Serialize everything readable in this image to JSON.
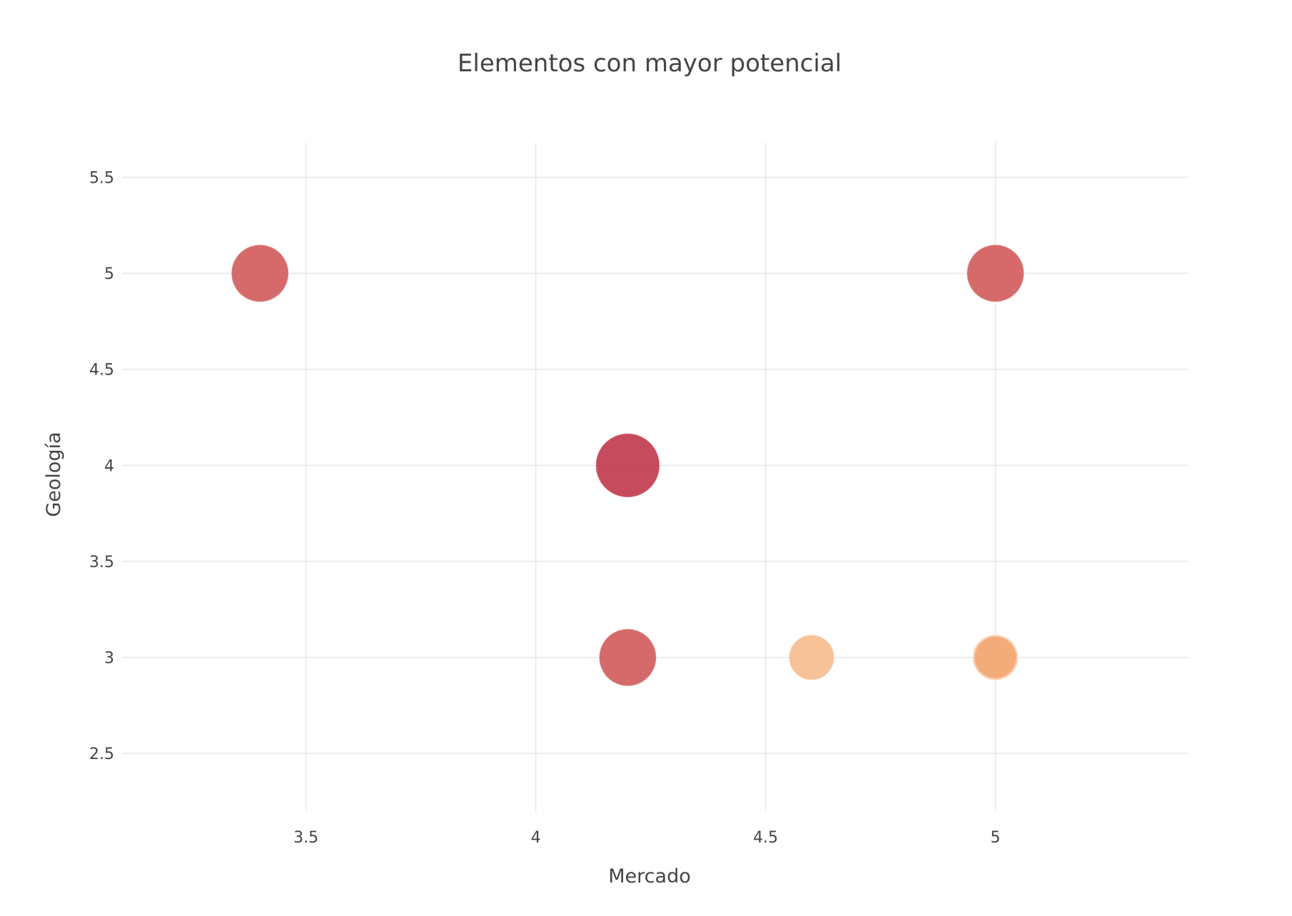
{
  "chart_data": {
    "type": "scatter",
    "title": "Elementos con mayor potencial",
    "xlabel": "Mercado",
    "ylabel": "Geología",
    "xlim": [
      3.1,
      5.42
    ],
    "ylim": [
      2.2,
      5.68
    ],
    "xticks": [
      3.5,
      4,
      4.5,
      5
    ],
    "yticks": [
      2.5,
      3,
      3.5,
      4,
      4.5,
      5,
      5.5
    ],
    "xtick_labels": [
      "3.5",
      "4",
      "4.5",
      "5"
    ],
    "ytick_labels": [
      "2.5",
      "3",
      "3.5",
      "4",
      "4.5",
      "5",
      "5.5"
    ],
    "grid": true,
    "points": [
      {
        "x": 3.4,
        "y": 5,
        "size": 4,
        "color": "#d25a5a"
      },
      {
        "x": 5.0,
        "y": 5,
        "size": 4,
        "color": "#d25a5a"
      },
      {
        "x": 4.2,
        "y": 4,
        "size": 5,
        "color": "#c0394b"
      },
      {
        "x": 4.2,
        "y": 3,
        "size": 4,
        "color": "#d25a5a"
      },
      {
        "x": 4.6,
        "y": 3,
        "size": 2.5,
        "color": "#f7bb8e"
      },
      {
        "x": 5.0,
        "y": 3,
        "size": 2.5,
        "color": "#f7bb8e"
      },
      {
        "x": 5.0,
        "y": 3,
        "size": 2.2,
        "color": "#f3a877"
      }
    ]
  }
}
